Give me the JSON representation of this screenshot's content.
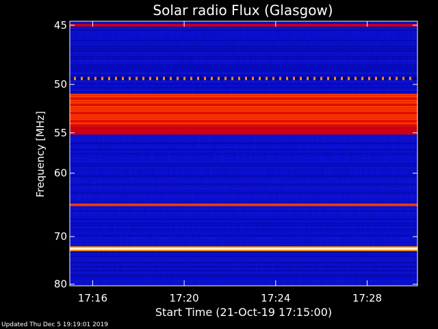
{
  "chart_data": {
    "type": "heatmap",
    "title": "Solar radio Flux (Glasgow)",
    "xlabel": "Start Time (21-Oct-19 17:15:00)",
    "ylabel": "Frequency [MHz]",
    "x_ticks": [
      "17:16",
      "17:20",
      "17:24",
      "17:28"
    ],
    "x_tick_minutes": [
      16,
      20,
      24,
      28
    ],
    "xlim_minutes": [
      15.0,
      30.2
    ],
    "y_ticks": [
      45,
      50,
      55,
      60,
      70,
      80
    ],
    "ylim": [
      44.7,
      80.4
    ],
    "y_scale": "reciprocal",
    "colors": {
      "background": "#000000",
      "low": "#0a10d8",
      "mid": "#cc0010",
      "high": "#ff3a00",
      "peak": "#ffffcc"
    },
    "bands": [
      {
        "freq_from": 44.9,
        "freq_to": 45.1,
        "level": "mid"
      },
      {
        "freq_from": 49.3,
        "freq_to": 49.6,
        "level": "high_dotted"
      },
      {
        "freq_from": 50.9,
        "freq_to": 54.3,
        "level": "high"
      },
      {
        "freq_from": 54.3,
        "freq_to": 55.2,
        "level": "mid"
      },
      {
        "freq_from": 64.4,
        "freq_to": 64.8,
        "level": "high"
      },
      {
        "freq_from": 72.1,
        "freq_to": 72.5,
        "level": "peak"
      }
    ]
  },
  "footer": {
    "updated": "Updated Thu Dec  5 19:19:01 2019"
  }
}
